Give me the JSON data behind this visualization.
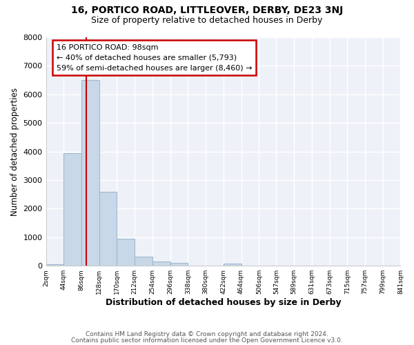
{
  "title": "16, PORTICO ROAD, LITTLEOVER, DERBY, DE23 3NJ",
  "subtitle": "Size of property relative to detached houses in Derby",
  "xlabel": "Distribution of detached houses by size in Derby",
  "ylabel": "Number of detached properties",
  "bar_color": "#c8d8e8",
  "bar_edge_color": "#a0b8cc",
  "background_color": "#ffffff",
  "plot_bg_color": "#eef2f8",
  "grid_color": "#ffffff",
  "bins": [
    2,
    44,
    86,
    128,
    170,
    212,
    254,
    296,
    338,
    380,
    422,
    464,
    506,
    547,
    589,
    631,
    673,
    715,
    757,
    799,
    841
  ],
  "bin_labels": [
    "2sqm",
    "44sqm",
    "86sqm",
    "128sqm",
    "170sqm",
    "212sqm",
    "254sqm",
    "296sqm",
    "338sqm",
    "380sqm",
    "422sqm",
    "464sqm",
    "506sqm",
    "547sqm",
    "589sqm",
    "631sqm",
    "673sqm",
    "715sqm",
    "757sqm",
    "799sqm",
    "841sqm"
  ],
  "bar_heights": [
    60,
    3950,
    6500,
    2600,
    950,
    320,
    150,
    90,
    0,
    0,
    70,
    0,
    0,
    0,
    0,
    0,
    0,
    0,
    0,
    0
  ],
  "ylim": [
    0,
    8000
  ],
  "yticks": [
    0,
    1000,
    2000,
    3000,
    4000,
    5000,
    6000,
    7000,
    8000
  ],
  "property_line_x": 98,
  "property_line_color": "#cc0000",
  "annotation_line1": "16 PORTICO ROAD: 98sqm",
  "annotation_line2": "← 40% of detached houses are smaller (5,793)",
  "annotation_line3": "59% of semi-detached houses are larger (8,460) →",
  "annotation_box_color": "#ffffff",
  "annotation_box_edge": "#cc0000",
  "footer_line1": "Contains HM Land Registry data © Crown copyright and database right 2024.",
  "footer_line2": "Contains public sector information licensed under the Open Government Licence v3.0."
}
